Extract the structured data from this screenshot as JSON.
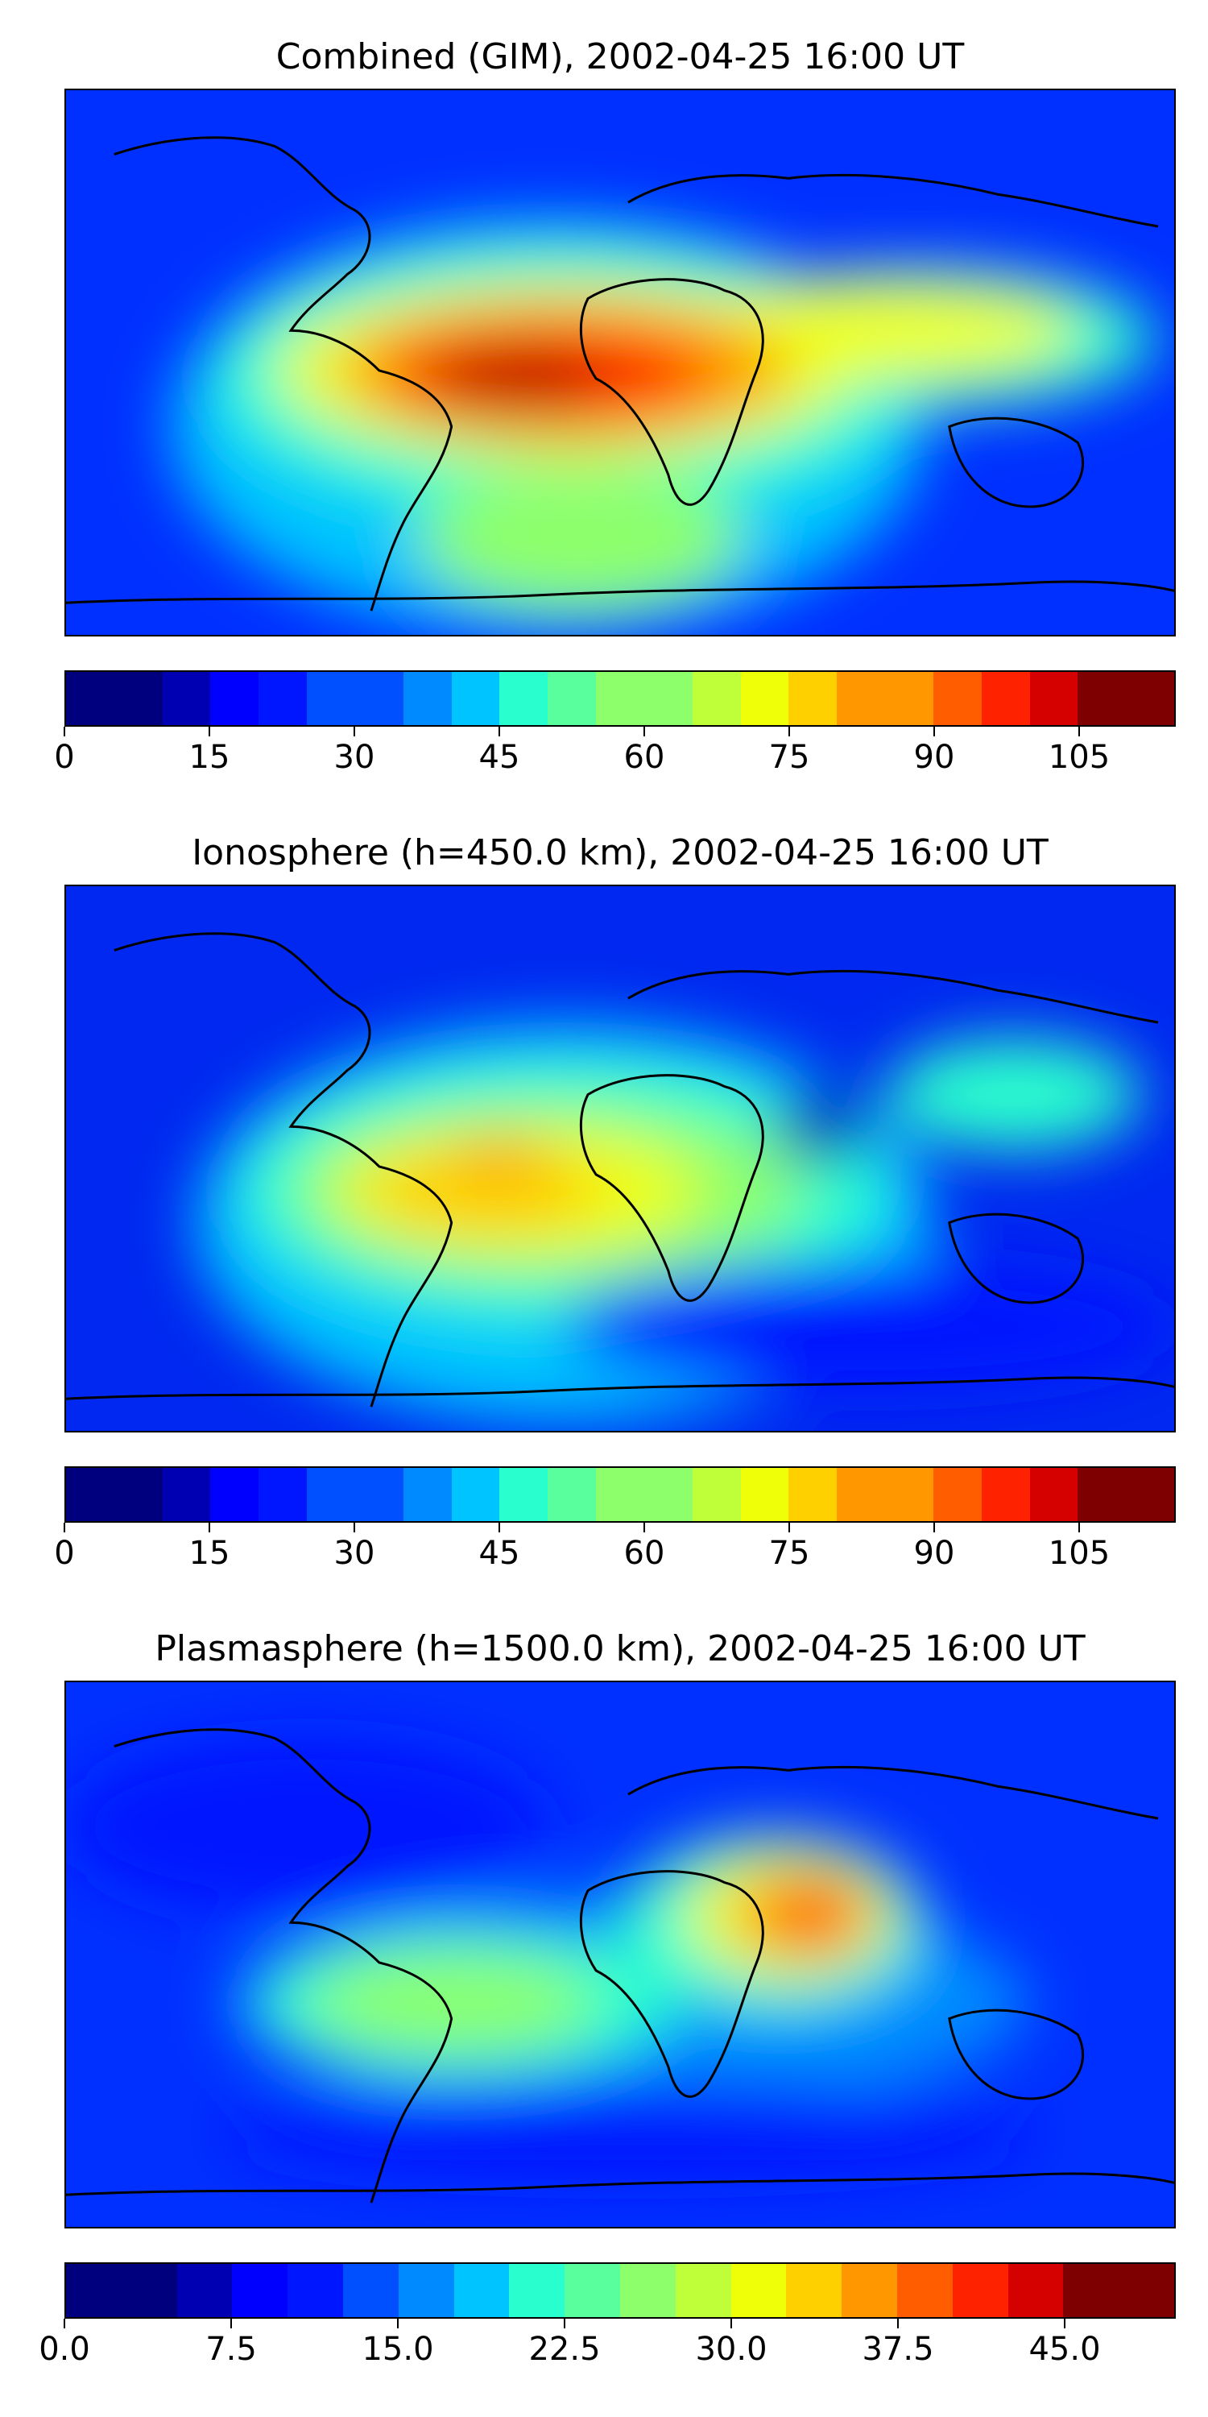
{
  "panels": [
    {
      "title": "Combined (GIM), 2002-04-25 16:00 UT",
      "colorbar": {
        "min": 0,
        "max": 115,
        "step": 5,
        "tick_labels": [
          "0",
          "15",
          "30",
          "45",
          "60",
          "75",
          "90",
          "105"
        ],
        "tick_values": [
          0,
          15,
          30,
          45,
          60,
          75,
          90,
          105
        ]
      }
    },
    {
      "title": "Ionosphere  (h=450.0 km), 2002-04-25 16:00 UT",
      "colorbar": {
        "min": 0,
        "max": 115,
        "step": 5,
        "tick_labels": [
          "0",
          "15",
          "30",
          "45",
          "60",
          "75",
          "90",
          "105"
        ],
        "tick_values": [
          0,
          15,
          30,
          45,
          60,
          75,
          90,
          105
        ]
      }
    },
    {
      "title": "Plasmasphere (h=1500.0 km), 2002-04-25 16:00 UT",
      "colorbar": {
        "min": 0,
        "max": 50,
        "step": 2.5,
        "tick_labels": [
          "0.0",
          "7.5",
          "15.0",
          "22.5",
          "30.0",
          "37.5",
          "45.0"
        ],
        "tick_values": [
          0,
          7.5,
          15,
          22.5,
          30,
          37.5,
          45
        ]
      }
    }
  ],
  "colormap": [
    "#00007f",
    "#0000b2",
    "#0000ff",
    "#0016ff",
    "#0050ff",
    "#008aff",
    "#00c4ff",
    "#29ffce",
    "#5aff9d",
    "#8dff6a",
    "#beff39",
    "#efff08",
    "#ffd000",
    "#ff9800",
    "#ff5d00",
    "#ff2200",
    "#d50000",
    "#7f0000",
    "#7f0000"
  ]
}
